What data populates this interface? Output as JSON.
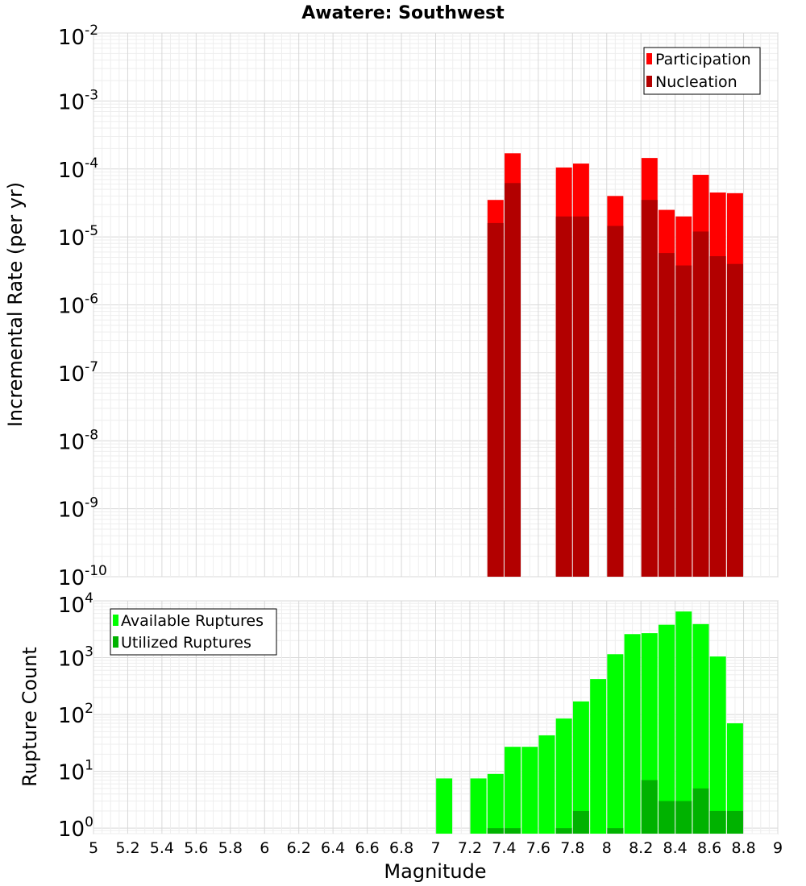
{
  "chart_data": [
    {
      "type": "bar",
      "title": "Awatere: Southwest",
      "ylabel": "Incremental Rate (per yr)",
      "xlabel": "",
      "y_scale": "log",
      "ylim": [
        1e-10,
        0.01
      ],
      "xlim": [
        5,
        9
      ],
      "grid": true,
      "legend_position": "top-right",
      "y_tick_labels": [
        {
          "base": "10",
          "exp": "-10"
        },
        {
          "base": "10",
          "exp": "-9"
        },
        {
          "base": "10",
          "exp": "-8"
        },
        {
          "base": "10",
          "exp": "-7"
        },
        {
          "base": "10",
          "exp": "-6"
        },
        {
          "base": "10",
          "exp": "-5"
        },
        {
          "base": "10",
          "exp": "-4"
        },
        {
          "base": "10",
          "exp": "-3"
        },
        {
          "base": "10",
          "exp": "-2"
        }
      ],
      "series": [
        {
          "name": "Participation",
          "color": "#ff0000",
          "x": [
            7.35,
            7.45,
            7.75,
            7.85,
            8.05,
            8.25,
            8.35,
            8.45,
            8.55,
            8.65,
            8.75
          ],
          "values": [
            3.5e-05,
            0.00017,
            0.000105,
            0.00012,
            4e-05,
            0.000145,
            2.5e-05,
            2e-05,
            8.2e-05,
            4.5e-05,
            4.4e-05
          ]
        },
        {
          "name": "Nucleation",
          "color": "#b20000",
          "x": [
            7.35,
            7.45,
            7.75,
            7.85,
            8.05,
            8.25,
            8.35,
            8.45,
            8.55,
            8.65,
            8.75
          ],
          "values": [
            1.6e-05,
            6.2e-05,
            2e-05,
            2e-05,
            1.45e-05,
            3.5e-05,
            5.8e-06,
            3.8e-06,
            1.2e-05,
            5.2e-06,
            4e-06
          ]
        }
      ]
    },
    {
      "type": "bar",
      "title": "",
      "ylabel": "Rupture Count",
      "xlabel": "Magnitude",
      "y_scale": "log",
      "ylim": [
        0.8,
        10000
      ],
      "xlim": [
        5,
        9
      ],
      "grid": true,
      "legend_position": "top-left",
      "x_tick_labels": [
        "5",
        "5.2",
        "5.4",
        "5.6",
        "5.8",
        "6",
        "6.2",
        "6.4",
        "6.6",
        "6.8",
        "7",
        "7.2",
        "7.4",
        "7.6",
        "7.8",
        "8",
        "8.2",
        "8.4",
        "8.6",
        "8.8",
        "9"
      ],
      "y_tick_labels": [
        {
          "base": "10",
          "exp": "0"
        },
        {
          "base": "10",
          "exp": "1"
        },
        {
          "base": "10",
          "exp": "2"
        },
        {
          "base": "10",
          "exp": "3"
        },
        {
          "base": "10",
          "exp": "4"
        }
      ],
      "series": [
        {
          "name": "Available Ruptures",
          "color": "#00ff00",
          "x": [
            7.05,
            7.25,
            7.35,
            7.45,
            7.55,
            7.65,
            7.75,
            7.85,
            7.95,
            8.05,
            8.15,
            8.25,
            8.35,
            8.45,
            8.55,
            8.65,
            8.75
          ],
          "values": [
            7.5,
            7.5,
            9,
            27,
            27,
            43,
            85,
            170,
            420,
            1150,
            2600,
            2700,
            3800,
            6500,
            3900,
            1050,
            70
          ]
        },
        {
          "name": "Utilized Ruptures",
          "color": "#00b200",
          "x": [
            7.35,
            7.45,
            7.75,
            7.85,
            8.05,
            8.25,
            8.35,
            8.45,
            8.55,
            8.65,
            8.75
          ],
          "values": [
            1,
            1,
            1,
            2,
            1,
            7,
            3,
            3,
            5,
            2,
            2
          ]
        }
      ]
    }
  ]
}
